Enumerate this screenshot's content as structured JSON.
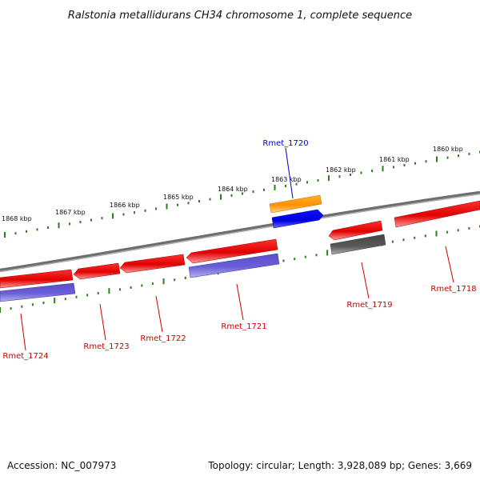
{
  "title": "Ralstonia metallidurans CH34 chromosome 1, complete sequence",
  "footer": {
    "accession": "Accession: NC_007973",
    "stats": "Topology: circular; Length: 3,928,089 bp; Genes: 3,669"
  },
  "kbp_labels": [
    "1868 kbp",
    "1867 kbp",
    "1866 kbp",
    "1865 kbp",
    "1864 kbp",
    "1863 kbp",
    "1862 kbp",
    "1861 kbp",
    "1860 kbp"
  ],
  "genes": [
    {
      "name": "Rmet_1720",
      "color": "#0000cc",
      "label_color": "#0000cc"
    },
    {
      "name": "Rmet_1718",
      "color": "#cc0000",
      "label_color": "#cc0000"
    },
    {
      "name": "Rmet_1719",
      "color": "#cc0000",
      "label_color": "#cc0000"
    },
    {
      "name": "Rmet_1721",
      "color": "#cc0000",
      "label_color": "#cc0000"
    },
    {
      "name": "Rmet_1722",
      "color": "#cc0000",
      "label_color": "#cc0000"
    },
    {
      "name": "Rmet_1723",
      "color": "#cc0000",
      "label_color": "#cc0000"
    },
    {
      "name": "Rmet_1724",
      "color": "#cc0000",
      "label_color": "#cc0000"
    }
  ],
  "colors": {
    "backbone": "#7a7a7a",
    "ticks": "#2e7d1e",
    "forward_gene": "#ee0000",
    "reverse_gene": "#ee0000",
    "cds_reverse": "#6a5acd",
    "cds_forward_orange": "#ff9900",
    "cds_blue": "#0000ee",
    "pseudo_gray": "#555555"
  }
}
